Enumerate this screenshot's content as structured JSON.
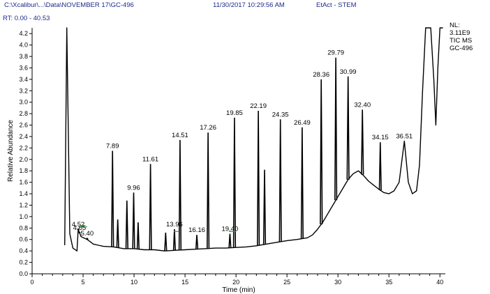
{
  "header": {
    "file_path": "C:\\Xcalibur\\...\\Data\\NOVEMBER 17\\GC-496",
    "datetime": "11/30/2017 10:29:56 AM",
    "sample": "EtAct - STEM",
    "rt_range": "RT: 0.00 - 40.53"
  },
  "colors": {
    "trace": "#000000",
    "axis": "#000000",
    "header_text": "#1f2a8a",
    "baseline_marker": "#2ca02c"
  },
  "chart_data": {
    "type": "line",
    "title": "",
    "xlabel": "Time (min)",
    "ylabel": "Relative Abundance",
    "xlim": [
      0,
      40.53
    ],
    "ylim": [
      0,
      4.3
    ],
    "x_ticks": [
      0,
      5,
      10,
      15,
      20,
      25,
      30,
      35,
      40
    ],
    "y_ticks": [
      0.0,
      0.2,
      0.4,
      0.6,
      0.8,
      1.0,
      1.2,
      1.4,
      1.6,
      1.8,
      2.0,
      2.2,
      2.4,
      2.6,
      2.8,
      3.0,
      3.2,
      3.4,
      3.6,
      3.8,
      4.0,
      4.2
    ],
    "info_box": [
      "NL:",
      "3.11E9",
      "TIC  MS",
      "GC-496"
    ],
    "baseline": [
      [
        3.2,
        0.5
      ],
      [
        3.4,
        4.3
      ],
      [
        3.7,
        0.7
      ],
      [
        4.0,
        0.45
      ],
      [
        4.4,
        0.4
      ],
      [
        4.52,
        0.78
      ],
      [
        4.8,
        0.65
      ],
      [
        5.4,
        0.6
      ],
      [
        6.0,
        0.52
      ],
      [
        6.5,
        0.5
      ],
      [
        7.0,
        0.48
      ],
      [
        8.0,
        0.47
      ],
      [
        9.0,
        0.44
      ],
      [
        10.0,
        0.44
      ],
      [
        11.0,
        0.42
      ],
      [
        12.0,
        0.42
      ],
      [
        13.0,
        0.4
      ],
      [
        14.0,
        0.41
      ],
      [
        15.0,
        0.42
      ],
      [
        16.0,
        0.43
      ],
      [
        17.0,
        0.44
      ],
      [
        18.0,
        0.45
      ],
      [
        19.0,
        0.45
      ],
      [
        20.0,
        0.46
      ],
      [
        21.0,
        0.47
      ],
      [
        22.0,
        0.49
      ],
      [
        23.0,
        0.52
      ],
      [
        24.0,
        0.55
      ],
      [
        25.0,
        0.58
      ],
      [
        26.0,
        0.6
      ],
      [
        27.0,
        0.63
      ],
      [
        27.5,
        0.68
      ],
      [
        28.0,
        0.78
      ],
      [
        28.5,
        0.9
      ],
      [
        29.0,
        1.05
      ],
      [
        29.5,
        1.2
      ],
      [
        30.0,
        1.35
      ],
      [
        30.5,
        1.5
      ],
      [
        31.0,
        1.65
      ],
      [
        31.5,
        1.75
      ],
      [
        32.0,
        1.8
      ],
      [
        32.5,
        1.72
      ],
      [
        33.0,
        1.62
      ],
      [
        33.5,
        1.55
      ],
      [
        34.0,
        1.48
      ],
      [
        34.5,
        1.42
      ],
      [
        35.0,
        1.4
      ],
      [
        35.5,
        1.45
      ],
      [
        36.0,
        1.6
      ],
      [
        36.51,
        2.32
      ],
      [
        36.9,
        1.6
      ],
      [
        37.3,
        1.4
      ],
      [
        37.7,
        1.45
      ],
      [
        38.0,
        1.9
      ],
      [
        38.3,
        3.2
      ],
      [
        38.6,
        4.3
      ],
      [
        39.1,
        4.3
      ],
      [
        39.4,
        3.4
      ],
      [
        39.6,
        2.6
      ],
      [
        39.8,
        3.6
      ],
      [
        40.0,
        4.3
      ],
      [
        40.3,
        4.3
      ]
    ],
    "peaks": [
      {
        "rt": 4.52,
        "height": 0.78,
        "label": "4.52",
        "labeled": true
      },
      {
        "rt": 4.65,
        "height": 0.72,
        "label": "4.65",
        "labeled": true
      },
      {
        "rt": 5.4,
        "height": 0.62,
        "label": "5.40",
        "labeled": true
      },
      {
        "rt": 7.89,
        "height": 2.15,
        "label": "7.89",
        "labeled": true
      },
      {
        "rt": 8.4,
        "height": 0.95,
        "labeled": false
      },
      {
        "rt": 9.3,
        "height": 1.28,
        "labeled": false
      },
      {
        "rt": 9.96,
        "height": 1.42,
        "label": "9.96",
        "labeled": true
      },
      {
        "rt": 10.4,
        "height": 0.9,
        "labeled": false
      },
      {
        "rt": 11.61,
        "height": 1.92,
        "label": "11.61",
        "labeled": true
      },
      {
        "rt": 13.1,
        "height": 0.72,
        "labeled": false
      },
      {
        "rt": 13.96,
        "height": 0.78,
        "label": "13.96",
        "labeled": true
      },
      {
        "rt": 14.51,
        "height": 2.34,
        "label": "14.51",
        "labeled": true
      },
      {
        "rt": 16.16,
        "height": 0.68,
        "label": "16.16",
        "labeled": true
      },
      {
        "rt": 17.26,
        "height": 2.47,
        "label": "17.26",
        "labeled": true
      },
      {
        "rt": 19.4,
        "height": 0.7,
        "label": "19.40",
        "labeled": true
      },
      {
        "rt": 19.85,
        "height": 2.73,
        "label": "19.85",
        "labeled": true
      },
      {
        "rt": 22.19,
        "height": 2.85,
        "label": "22.19",
        "labeled": true
      },
      {
        "rt": 22.8,
        "height": 1.82,
        "labeled": false
      },
      {
        "rt": 24.35,
        "height": 2.7,
        "label": "24.35",
        "labeled": true
      },
      {
        "rt": 26.49,
        "height": 2.56,
        "label": "26.49",
        "labeled": true
      },
      {
        "rt": 28.36,
        "height": 3.4,
        "label": "28.36",
        "labeled": true
      },
      {
        "rt": 29.79,
        "height": 3.78,
        "label": "29.79",
        "labeled": true
      },
      {
        "rt": 30.99,
        "height": 3.45,
        "label": "30.99",
        "labeled": true
      },
      {
        "rt": 32.4,
        "height": 2.87,
        "label": "32.40",
        "labeled": true
      },
      {
        "rt": 34.15,
        "height": 2.3,
        "label": "34.15",
        "labeled": true
      }
    ],
    "green_markers": [
      [
        4.6,
        5.4,
        0.82
      ],
      [
        13.9,
        14.4,
        0.74
      ],
      [
        19.3,
        20.0,
        0.74
      ]
    ]
  }
}
